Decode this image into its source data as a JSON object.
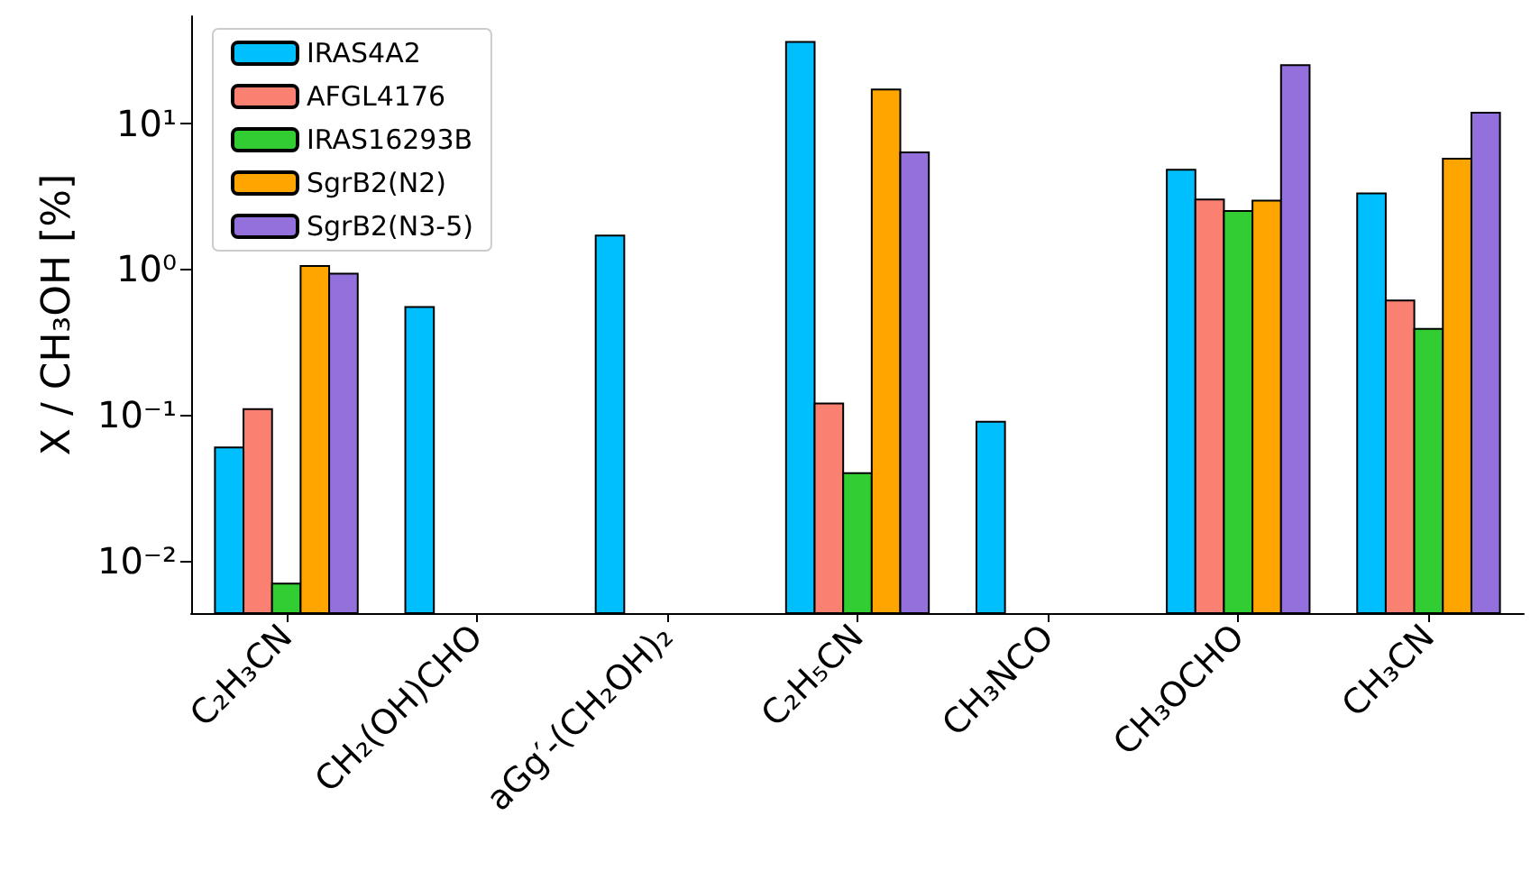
{
  "chart_data": {
    "type": "bar",
    "ylabel": "X / CH₃OH [%]",
    "categories": [
      "C₂H₃CN",
      "CH₂(OH)CHO",
      "aGg′-(CH₂OH)₂",
      "C₂H₅CN",
      "CH₃NCO",
      "CH₃OCHO",
      "CH₃CN"
    ],
    "series": [
      {
        "name": "IRAS4A2",
        "color": "#00bfff",
        "values": [
          0.06,
          0.55,
          1.7,
          36,
          0.09,
          4.8,
          3.3
        ]
      },
      {
        "name": "AFGL4176",
        "color": "#fa8072",
        "values": [
          0.11,
          null,
          null,
          0.12,
          null,
          3.0,
          0.61
        ]
      },
      {
        "name": "IRAS16293B",
        "color": "#32cd32",
        "values": [
          0.007,
          null,
          null,
          0.04,
          null,
          2.5,
          0.39
        ]
      },
      {
        "name": "SgrB2(N2)",
        "color": "#ffa500",
        "values": [
          1.05,
          null,
          null,
          17,
          null,
          2.95,
          5.7
        ]
      },
      {
        "name": "SgrB2(N3-5)",
        "color": "#9370db",
        "values": [
          0.93,
          null,
          null,
          6.3,
          null,
          25,
          11.8
        ]
      }
    ],
    "log": "y",
    "ylim": [
      0.0044,
      54
    ],
    "yticks": [
      {
        "value": 0.01,
        "label": "10⁻²"
      },
      {
        "value": 0.1,
        "label": "10⁻¹"
      },
      {
        "value": 1,
        "label": "10⁰"
      },
      {
        "value": 10,
        "label": "10¹"
      }
    ],
    "legend": "top left",
    "grid": false
  }
}
